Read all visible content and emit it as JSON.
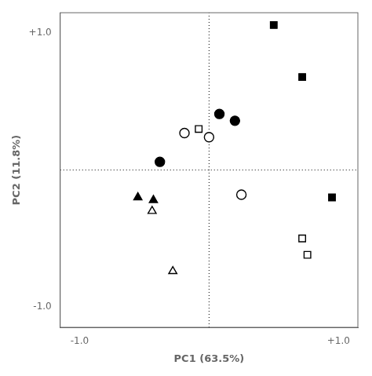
{
  "chart_data": {
    "type": "scatter",
    "xlabel": "PC1 (63.5%)",
    "ylabel": "PC2 (11.8%)",
    "xlim": [
      -1.15,
      1.15
    ],
    "ylim": [
      -1.15,
      1.15
    ],
    "xticks": [
      {
        "value": -1.0,
        "label": "-1.0"
      },
      {
        "value": 1.0,
        "label": "+1.0"
      }
    ],
    "yticks": [
      {
        "value": -1.0,
        "label": "-1.0"
      },
      {
        "value": 1.0,
        "label": "+1.0"
      }
    ],
    "grid": false,
    "series": [
      {
        "type": "line",
        "line_style": "dotted",
        "color": "black",
        "x": [
          -1.15,
          1.15
        ],
        "values": [
          0.0,
          0.0
        ]
      },
      {
        "type": "line",
        "line_style": "dotted",
        "color": "black",
        "x": [
          0.0,
          0.0
        ],
        "values": [
          -1.15,
          1.15
        ]
      },
      {
        "marker": "square",
        "color": "black",
        "x": [
          0.5,
          0.72,
          0.95
        ],
        "values": [
          1.06,
          0.68,
          -0.2
        ]
      },
      {
        "marker": "square",
        "color": "white",
        "x": [
          0.72,
          0.76,
          -0.08
        ],
        "values": [
          -0.5,
          -0.62,
          0.3
        ]
      },
      {
        "marker": "circle",
        "color": "black",
        "x": [
          0.08,
          0.2,
          -0.38
        ],
        "values": [
          0.41,
          0.36,
          0.06
        ]
      },
      {
        "marker": "circle",
        "color": "white",
        "x": [
          -0.19,
          0.0,
          0.25
        ],
        "values": [
          0.27,
          0.24,
          -0.18
        ]
      },
      {
        "marker": "triangle",
        "color": "black",
        "x": [
          -0.55,
          -0.43
        ],
        "values": [
          -0.2,
          -0.22
        ]
      },
      {
        "marker": "triangle",
        "color": "white",
        "x": [
          -0.44,
          -0.28
        ],
        "values": [
          -0.3,
          -0.74
        ]
      }
    ]
  }
}
